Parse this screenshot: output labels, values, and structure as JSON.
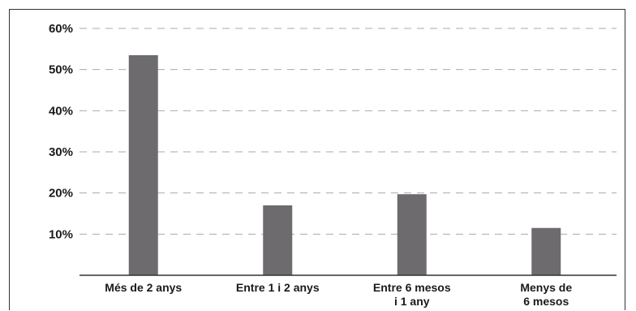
{
  "chart_data": {
    "type": "bar",
    "categories": [
      [
        "Més de 2 anys"
      ],
      [
        "Entre 1 i 2 anys"
      ],
      [
        "Entre 6 mesos",
        "i 1 any"
      ],
      [
        "Menys de",
        "6 mesos"
      ]
    ],
    "values": [
      53.5,
      17,
      19.7,
      11.5
    ],
    "y_ticks": [
      "10%",
      "20%",
      "30%",
      "40%",
      "50%",
      "60%"
    ],
    "ylim": [
      0,
      60
    ],
    "grid": true,
    "colors": {
      "bar": "#6d6b6e",
      "grid": "#aaaaaa",
      "axis": "#333333"
    }
  }
}
